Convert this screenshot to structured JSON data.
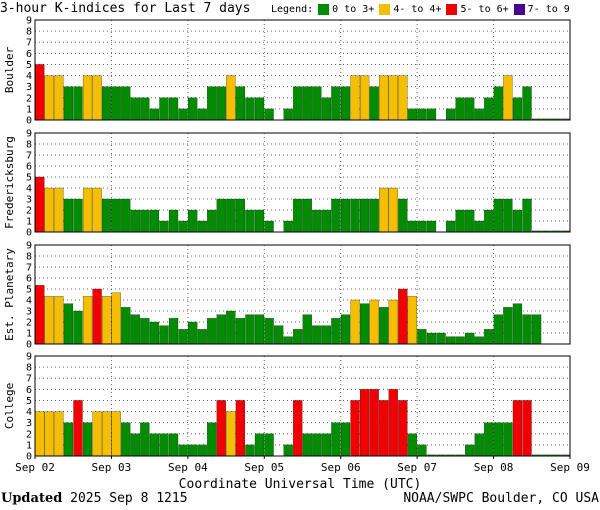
{
  "title": "3-hour K-indices for Last 7 days",
  "legend": {
    "label": "Legend:",
    "items": [
      {
        "label": "0 to 3+",
        "color": "#008c00"
      },
      {
        "label": "4- to 4+",
        "color": "#f5be00"
      },
      {
        "label": "5- to 6+",
        "color": "#f00000"
      },
      {
        "label": "7- to 9",
        "color": "#4b0090"
      }
    ]
  },
  "xlabel": "Coordinate Universal Time (UTC)",
  "footer": {
    "updated_label": "Updated",
    "updated_value": "2025 Sep  8 1215",
    "credit": "NOAA/SWPC Boulder, CO USA"
  },
  "chart_data": [
    {
      "type": "bar",
      "name": "Boulder",
      "ylim": [
        0,
        9
      ],
      "yticks": [
        "0",
        "1",
        "2",
        "3",
        "4",
        "5",
        "6",
        "7",
        "8",
        "9"
      ],
      "grid": "dotted",
      "values": [
        5,
        4,
        4,
        3,
        3,
        4,
        4,
        3,
        3,
        3,
        2,
        2,
        1,
        2,
        2,
        1,
        2,
        1,
        3,
        3,
        4,
        3,
        2,
        2,
        1,
        0,
        1,
        3,
        3,
        3,
        2,
        3,
        3,
        4,
        4,
        3,
        4,
        4,
        4,
        1,
        1,
        1,
        0,
        1,
        2,
        2,
        1,
        2,
        3,
        4,
        2,
        3,
        0.1,
        0.1,
        0.1,
        0.1
      ]
    },
    {
      "type": "bar",
      "name": "Fredericksburg",
      "ylim": [
        0,
        9
      ],
      "yticks": [
        "0",
        "1",
        "2",
        "3",
        "4",
        "5",
        "6",
        "7",
        "8",
        "9"
      ],
      "grid": "dotted",
      "values": [
        5,
        4,
        4,
        3,
        3,
        4,
        4,
        3,
        3,
        3,
        2,
        2,
        2,
        1,
        2,
        1,
        2,
        1,
        2,
        3,
        3,
        3,
        2,
        2,
        1,
        0,
        1,
        3,
        3,
        2,
        2,
        3,
        3,
        3,
        3,
        3,
        4,
        4,
        3,
        1,
        1,
        1,
        0,
        1,
        2,
        2,
        1,
        2,
        3,
        3,
        2,
        3,
        0.1,
        0.1,
        0.1,
        0.1
      ]
    },
    {
      "type": "bar",
      "name": "Est. Planetary",
      "ylim": [
        0,
        9
      ],
      "yticks": [
        "0",
        "1",
        "2",
        "3",
        "4",
        "5",
        "6",
        "7",
        "8",
        "9"
      ],
      "grid": "dotted",
      "values": [
        5.33,
        4.33,
        4.33,
        3.67,
        3,
        4.33,
        5,
        4.33,
        4.67,
        3.33,
        2.67,
        2.33,
        2,
        1.67,
        2.33,
        1.33,
        2,
        1.33,
        2.33,
        2.67,
        3,
        2.33,
        2.67,
        2.67,
        2.33,
        1.67,
        0.67,
        1.33,
        2.67,
        1.67,
        1.67,
        2.33,
        2.67,
        4,
        3.67,
        4,
        3.33,
        4,
        5,
        4.33,
        1.33,
        1,
        1,
        0.67,
        0.67,
        1,
        0.67,
        1.33,
        2.67,
        3.33,
        3.67,
        2.67,
        2.67,
        0,
        0,
        0
      ]
    },
    {
      "type": "bar",
      "name": "College",
      "ylim": [
        0,
        9
      ],
      "yticks": [
        "0",
        "1",
        "2",
        "3",
        "4",
        "5",
        "6",
        "7",
        "8",
        "9"
      ],
      "grid": "dotted",
      "values": [
        4,
        4,
        4,
        3,
        5,
        3,
        4,
        4,
        4,
        3,
        2,
        3,
        2,
        2,
        2,
        1,
        1,
        1,
        3,
        5,
        4,
        5,
        1,
        2,
        2,
        0,
        1,
        5,
        2,
        2,
        2,
        3,
        3,
        5,
        6,
        6,
        5,
        6,
        5,
        2,
        1,
        0.1,
        0.1,
        0.1,
        0.1,
        1,
        2,
        3,
        3,
        3,
        5,
        5,
        0.1,
        0.1,
        0.1,
        0.1
      ]
    }
  ],
  "x_ticks": [
    "Sep 02",
    "Sep 03",
    "Sep 04",
    "Sep 05",
    "Sep 06",
    "Sep 07",
    "Sep 08",
    "Sep 09"
  ]
}
